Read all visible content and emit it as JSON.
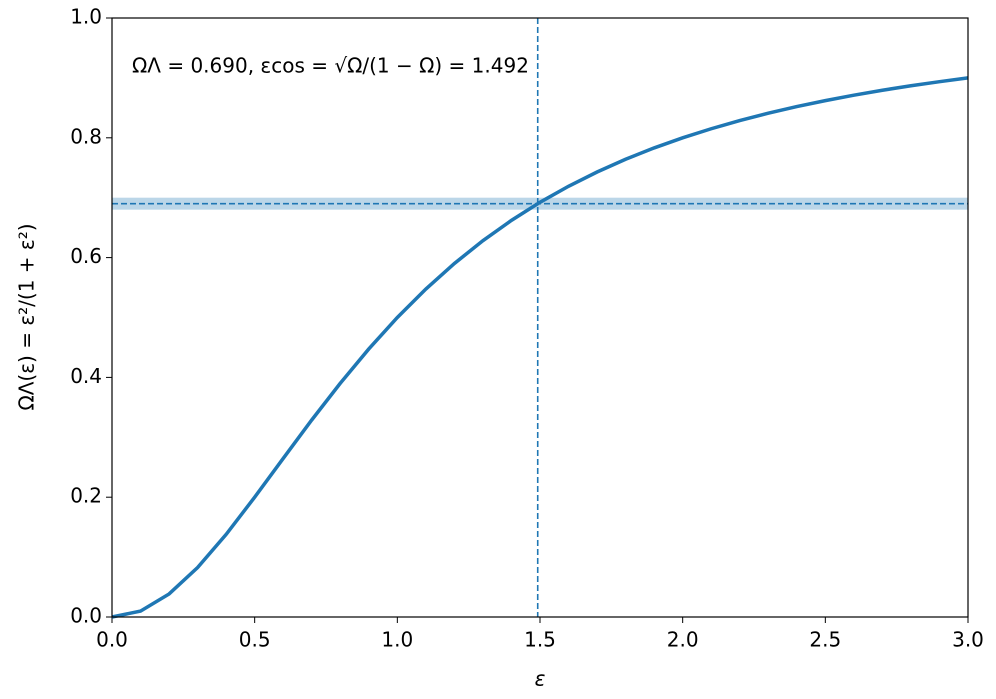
{
  "chart_data": {
    "type": "line",
    "annotation": "ΩΛ = 0.690,  εcos = √Ω/(1 − Ω) = 1.492",
    "x_label": "ε",
    "y_label": "ΩΛ(ε) = ε²/(1 + ε²)",
    "x": [
      0,
      0.1,
      0.2,
      0.3,
      0.4,
      0.5,
      0.6,
      0.7,
      0.8,
      0.9,
      1.0,
      1.1,
      1.2,
      1.3,
      1.4,
      1.5,
      1.6,
      1.7,
      1.8,
      1.9,
      2.0,
      2.1,
      2.2,
      2.3,
      2.4,
      2.5,
      2.6,
      2.7,
      2.8,
      2.9,
      3.0
    ],
    "series": [
      {
        "color": "#1f77b4",
        "values": [
          0,
          0.0099,
          0.0385,
          0.0826,
          0.1379,
          0.2,
          0.2647,
          0.3289,
          0.3902,
          0.4475,
          0.5,
          0.5475,
          0.5902,
          0.6283,
          0.6622,
          0.6923,
          0.7191,
          0.7429,
          0.7642,
          0.7831,
          0.8,
          0.8151,
          0.8288,
          0.841,
          0.8521,
          0.8621,
          0.8711,
          0.8794,
          0.8869,
          0.8937,
          0.9
        ]
      }
    ],
    "hline": 0.69,
    "hband": [
      0.68,
      0.7
    ],
    "vline": 1.492,
    "xlim": [
      0,
      3
    ],
    "ylim": [
      0,
      1
    ],
    "xticks": [
      {
        "value": 0,
        "label": "0.0"
      },
      0.5,
      {
        "value": 1,
        "label": "1.0"
      },
      1.5,
      {
        "value": 2,
        "label": "2.0"
      },
      2.5,
      {
        "value": 3,
        "label": "3.0"
      }
    ],
    "yticks": [
      {
        "value": 0,
        "label": "0.0"
      },
      0.2,
      0.4,
      0.6,
      0.8,
      {
        "value": 1,
        "label": "1.0"
      }
    ]
  }
}
